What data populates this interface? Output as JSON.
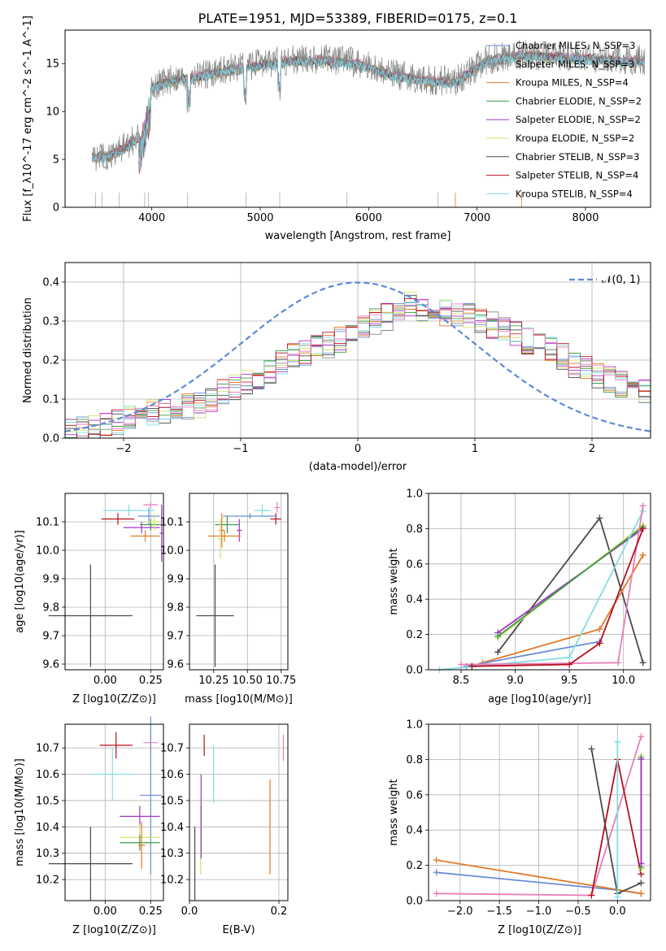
{
  "title": "PLATE=1951, MJD=53389, FIBERID=0175, z=0.1",
  "colors": {
    "chabrier_miles": "#6a8fd8",
    "salpeter_miles": "#888888",
    "kroupa_miles": "#e07a28",
    "chabrier_elodie": "#3f9a46",
    "salpeter_elodie": "#a335c7",
    "kroupa_elodie": "#d4e36a",
    "chabrier_stelib": "#4a4a4a",
    "salpeter_stelib": "#b80f1e",
    "kroupa_stelib": "#82dde3",
    "pink": "#e87eb9",
    "gauss": "#5f8ad8"
  },
  "chart_data": [
    {
      "id": "spectrum",
      "type": "line",
      "xlabel": "wavelength [Angstrom, rest frame]",
      "ylabel": "Flux [f_λ10^-17 erg cm^-2 s^-1 A^-1]",
      "xlim": [
        3200,
        8600
      ],
      "ylim": [
        0,
        18.5
      ],
      "xticks": [
        "4000",
        "5000",
        "6000",
        "7000",
        "8000"
      ],
      "yticks": [
        "0",
        "5",
        "10",
        "15"
      ],
      "grid": false,
      "legend_position": "top-right",
      "legend": [
        "Chabrier MILES, N_SSP=3",
        "Salpeter MILES, N_SSP=3",
        "Kroupa MILES, N_SSP=4",
        "Chabrier ELODIE, N_SSP=2",
        "Salpeter ELODIE, N_SSP=2",
        "Kroupa ELODIE, N_SSP=2",
        "Chabrier STELIB, N_SSP=3",
        "Salpeter STELIB, N_SSP=4",
        "Kroupa STELIB, N_SSP=4"
      ],
      "continuum": {
        "x": [
          3450,
          3600,
          3750,
          3900,
          4000,
          4200,
          4500,
          4800,
          5000,
          5300,
          5600,
          5900,
          6200,
          6500,
          6800,
          7100,
          7400,
          7700,
          8000,
          8300,
          8550
        ],
        "y": [
          5.2,
          5.3,
          6.2,
          7.5,
          12.5,
          13.2,
          13.8,
          14.5,
          14.8,
          15.3,
          15.3,
          15.0,
          13.8,
          13.2,
          13.0,
          15.3,
          15.8,
          15.7,
          15.5,
          15.3,
          15.2
        ]
      },
      "spikes": [
        3480,
        3540,
        3700,
        3935,
        3970,
        4330,
        4870,
        5180,
        5800,
        6640,
        6800,
        7410
      ]
    },
    {
      "id": "residuals",
      "type": "histogram",
      "xlabel": "(data-model)/error",
      "ylabel": "Normed distribution",
      "xlim": [
        -2.5,
        2.5
      ],
      "ylim": [
        0,
        0.45
      ],
      "xticks": [
        "−2",
        "−1",
        "0",
        "1",
        "2"
      ],
      "yticks": [
        "0.0",
        "0.1",
        "0.2",
        "0.3",
        "0.4"
      ],
      "grid": true,
      "legend_position": "top-right",
      "gauss_label": "𝒩(0, 1)",
      "bin_width": 0.1,
      "base_centers": [
        -2.45,
        -2.35,
        -2.25,
        -2.15,
        -2.05,
        -1.95,
        -1.85,
        -1.75,
        -1.65,
        -1.55,
        -1.45,
        -1.35,
        -1.25,
        -1.15,
        -1.05,
        -0.95,
        -0.85,
        -0.75,
        -0.65,
        -0.55,
        -0.45,
        -0.35,
        -0.25,
        -0.15,
        -0.05,
        0.05,
        0.15,
        0.25,
        0.35,
        0.45,
        0.55,
        0.65,
        0.75,
        0.85,
        0.95,
        1.05,
        1.15,
        1.25,
        1.35,
        1.45,
        1.55,
        1.65,
        1.75,
        1.85,
        1.95,
        2.05,
        2.15,
        2.25,
        2.35,
        2.45
      ],
      "base_values": [
        0.02,
        0.025,
        0.03,
        0.03,
        0.04,
        0.05,
        0.06,
        0.065,
        0.07,
        0.07,
        0.08,
        0.085,
        0.1,
        0.12,
        0.13,
        0.14,
        0.16,
        0.17,
        0.19,
        0.21,
        0.22,
        0.23,
        0.24,
        0.25,
        0.26,
        0.28,
        0.3,
        0.31,
        0.33,
        0.34,
        0.33,
        0.33,
        0.32,
        0.32,
        0.31,
        0.3,
        0.29,
        0.28,
        0.27,
        0.25,
        0.24,
        0.23,
        0.21,
        0.19,
        0.18,
        0.16,
        0.15,
        0.14,
        0.13,
        0.12
      ]
    },
    {
      "id": "age-vs-Z",
      "type": "errorbar",
      "xlabel": "Z [log10(Z/Z⊙)]",
      "ylabel": "age  [log10(age/yr)]",
      "xlim": [
        -0.22,
        0.32
      ],
      "ylim": [
        9.58,
        10.2
      ],
      "xticks": [
        "0.00",
        "0.25"
      ],
      "yticks": [
        "9.6",
        "9.7",
        "9.8",
        "9.9",
        "10.0",
        "10.1"
      ],
      "grid": true,
      "points": [
        {
          "x": -0.08,
          "y": 9.77,
          "ex": 0.23,
          "ey": 0.18,
          "c": "chabrier_stelib"
        },
        {
          "x": 0.07,
          "y": 10.11,
          "ex": 0.09,
          "ey": 0.02,
          "c": "salpeter_stelib"
        },
        {
          "x": 0.13,
          "y": 10.14,
          "ex": 0.14,
          "ey": 0.02,
          "c": "kroupa_stelib"
        },
        {
          "x": 0.25,
          "y": 10.16,
          "ex": 0.04,
          "ey": 0.01,
          "c": "pink"
        },
        {
          "x": 0.22,
          "y": 10.05,
          "ex": 0.08,
          "ey": 0.02,
          "c": "kroupa_miles"
        },
        {
          "x": 0.2,
          "y": 10.08,
          "ex": 0.1,
          "ey": 0.02,
          "c": "salpeter_elodie"
        },
        {
          "x": 0.24,
          "y": 10.12,
          "ex": 0.06,
          "ey": 0.03,
          "c": "chabrier_miles"
        },
        {
          "x": 0.25,
          "y": 10.09,
          "ex": 0.06,
          "ey": 0.02,
          "c": "chabrier_elodie"
        },
        {
          "x": 0.27,
          "y": 10.1,
          "ex": 0.04,
          "ey": 0.03,
          "c": "kroupa_elodie"
        },
        {
          "x": 0.31,
          "y": 10.06,
          "ex": 0.01,
          "ey": 0.1,
          "c": "salpeter_elodie"
        }
      ]
    },
    {
      "id": "age-vs-mass",
      "type": "errorbar",
      "xlabel": "mass [log10(M/M⊙)]",
      "ylabel": "",
      "xlim": [
        10.07,
        10.8
      ],
      "ylim": [
        9.58,
        10.2
      ],
      "xticks": [
        "10.25",
        "10.50",
        "10.75"
      ],
      "yticks": [
        "9.6",
        "9.7",
        "9.8",
        "9.9",
        "10.0",
        "10.1"
      ],
      "grid": true,
      "points": [
        {
          "x": 10.26,
          "y": 9.77,
          "ex": 0.14,
          "ey": 0.18,
          "c": "chabrier_stelib"
        },
        {
          "x": 10.71,
          "y": 10.11,
          "ex": 0.04,
          "ey": 0.02,
          "c": "salpeter_stelib"
        },
        {
          "x": 10.61,
          "y": 10.14,
          "ex": 0.06,
          "ey": 0.02,
          "c": "kroupa_stelib"
        },
        {
          "x": 10.72,
          "y": 10.15,
          "ex": 0.02,
          "ey": 0.02,
          "c": "pink"
        },
        {
          "x": 10.52,
          "y": 10.12,
          "ex": 0.2,
          "ey": 0.01,
          "c": "chabrier_miles"
        },
        {
          "x": 10.31,
          "y": 10.07,
          "ex": 0.02,
          "ey": 0.06,
          "c": "kroupa_miles"
        },
        {
          "x": 10.35,
          "y": 10.09,
          "ex": 0.09,
          "ey": 0.03,
          "c": "chabrier_elodie"
        },
        {
          "x": 10.44,
          "y": 10.07,
          "ex": 0.02,
          "ey": 0.04,
          "c": "salpeter_elodie"
        },
        {
          "x": 10.33,
          "y": 10.05,
          "ex": 0.12,
          "ey": 0.02,
          "c": "kroupa_miles"
        },
        {
          "x": 10.3,
          "y": 10.04,
          "ex": 0.02,
          "ey": 0.07,
          "c": "kroupa_elodie"
        }
      ]
    },
    {
      "id": "massweight-vs-age",
      "type": "line",
      "xlabel": "age  [log10(age/yr)]",
      "ylabel": "mass weight",
      "xlim": [
        8.2,
        10.25
      ],
      "ylim": [
        0,
        1.0
      ],
      "xticks": [
        "8.5",
        "9.0",
        "9.5",
        "10.0"
      ],
      "yticks": [
        "0.0",
        "0.2",
        "0.4",
        "0.6",
        "0.8",
        "1.0"
      ],
      "grid": true,
      "series": [
        {
          "c": "chabrier_stelib",
          "x": [
            8.84,
            9.78,
            10.18
          ],
          "y": [
            0.1,
            0.86,
            0.04
          ]
        },
        {
          "c": "salpeter_elodie",
          "x": [
            8.84,
            10.18
          ],
          "y": [
            0.21,
            0.8
          ]
        },
        {
          "c": "kroupa_elodie",
          "x": [
            8.84,
            10.18
          ],
          "y": [
            0.18,
            0.82
          ]
        },
        {
          "c": "chabrier_elodie",
          "x": [
            8.84,
            10.18
          ],
          "y": [
            0.19,
            0.81
          ]
        },
        {
          "c": "kroupa_miles",
          "x": [
            8.7,
            9.78,
            10.18
          ],
          "y": [
            0.04,
            0.23,
            0.65
          ]
        },
        {
          "c": "chabrier_miles",
          "x": [
            8.55,
            9.78
          ],
          "y": [
            0.02,
            0.16
          ]
        },
        {
          "c": "kroupa_stelib",
          "x": [
            8.3,
            9.5,
            10.18
          ],
          "y": [
            0.0,
            0.07,
            0.9
          ]
        },
        {
          "c": "pink",
          "x": [
            8.5,
            9.95,
            10.18
          ],
          "y": [
            0.03,
            0.04,
            0.93
          ]
        },
        {
          "c": "salpeter_stelib",
          "x": [
            8.6,
            9.5,
            9.78,
            10.18
          ],
          "y": [
            0.02,
            0.03,
            0.15,
            0.8
          ]
        }
      ]
    },
    {
      "id": "mass-vs-Z",
      "type": "errorbar",
      "xlabel": "Z [log10(Z/Z⊙)]",
      "ylabel": "mass [log10(M/M⊙)]",
      "xlim": [
        -0.22,
        0.32
      ],
      "ylim": [
        10.12,
        10.79
      ],
      "xticks": [
        "0.00",
        "0.25"
      ],
      "yticks": [
        "10.2",
        "10.3",
        "10.4",
        "10.5",
        "10.6",
        "10.7"
      ],
      "grid": true,
      "points": [
        {
          "x": -0.08,
          "y": 10.26,
          "ex": 0.23,
          "ey": 0.14,
          "c": "chabrier_stelib"
        },
        {
          "x": 0.06,
          "y": 10.71,
          "ex": 0.09,
          "ey": 0.05,
          "c": "salpeter_stelib"
        },
        {
          "x": 0.04,
          "y": 10.6,
          "ex": 0.13,
          "ey": 0.1,
          "c": "kroupa_stelib"
        },
        {
          "x": 0.25,
          "y": 10.72,
          "ex": 0.04,
          "ey": 0.04,
          "c": "pink"
        },
        {
          "x": 0.25,
          "y": 10.52,
          "ex": 0.06,
          "ey": 0.3,
          "c": "chabrier_miles"
        },
        {
          "x": 0.19,
          "y": 10.44,
          "ex": 0.11,
          "ey": 0.04,
          "c": "salpeter_elodie"
        },
        {
          "x": 0.19,
          "y": 10.36,
          "ex": 0.11,
          "ey": 0.05,
          "c": "kroupa_elodie"
        },
        {
          "x": 0.19,
          "y": 10.34,
          "ex": 0.11,
          "ey": 0.03,
          "c": "chabrier_elodie"
        },
        {
          "x": 0.2,
          "y": 10.33,
          "ex": 0.02,
          "ey": 0.09,
          "c": "kroupa_miles"
        }
      ]
    },
    {
      "id": "mass-vs-ebv",
      "type": "errorbar",
      "xlabel": "E(B-V)",
      "ylabel": "",
      "xlim": [
        0.0,
        0.22
      ],
      "ylim": [
        10.12,
        10.79
      ],
      "xticks": [
        "0.0",
        "0.2"
      ],
      "yticks": [
        "10.2",
        "10.3",
        "10.4",
        "10.5",
        "10.6",
        "10.7"
      ],
      "grid": true,
      "points": [
        {
          "x": 0.012,
          "y": 10.26,
          "ex": 0.0,
          "ey": 0.14,
          "c": "chabrier_stelib"
        },
        {
          "x": 0.025,
          "y": 10.35,
          "ex": 0.0,
          "ey": 0.13,
          "c": "kroupa_elodie"
        },
        {
          "x": 0.026,
          "y": 10.44,
          "ex": 0.0,
          "ey": 0.16,
          "c": "salpeter_elodie"
        },
        {
          "x": 0.033,
          "y": 10.71,
          "ex": 0.0,
          "ey": 0.04,
          "c": "salpeter_stelib"
        },
        {
          "x": 0.054,
          "y": 10.6,
          "ex": 0.0,
          "ey": 0.11,
          "c": "kroupa_stelib"
        },
        {
          "x": 0.18,
          "y": 10.4,
          "ex": 0.0,
          "ey": 0.18,
          "c": "kroupa_miles"
        },
        {
          "x": 0.21,
          "y": 10.7,
          "ex": 0.0,
          "ey": 0.05,
          "c": "pink"
        }
      ]
    },
    {
      "id": "massweight-vs-Z",
      "type": "line",
      "xlabel": "Z [log10(Z/Z⊙)]",
      "ylabel": "mass weight",
      "xlim": [
        -2.4,
        0.42
      ],
      "ylim": [
        0,
        1.0
      ],
      "xticks": [
        "−2.0",
        "−1.5",
        "−1.0",
        "−0.5",
        "0.0"
      ],
      "yticks": [
        "0.0",
        "0.2",
        "0.4",
        "0.6",
        "0.8",
        "1.0"
      ],
      "grid": true,
      "series": [
        {
          "c": "chabrier_miles",
          "x": [
            -2.3,
            -0.0,
            0.3
          ],
          "y": [
            0.16,
            0.06,
            0.04
          ]
        },
        {
          "c": "kroupa_miles",
          "x": [
            -2.3,
            0.3
          ],
          "y": [
            0.23,
            0.04
          ]
        },
        {
          "c": "pink",
          "x": [
            -2.3,
            -0.33,
            0.3
          ],
          "y": [
            0.04,
            0.03,
            0.93
          ]
        },
        {
          "c": "chabrier_stelib",
          "x": [
            -0.33,
            0.0,
            0.3
          ],
          "y": [
            0.86,
            0.04,
            0.1
          ]
        },
        {
          "c": "salpeter_stelib",
          "x": [
            -0.33,
            0.0,
            0.3
          ],
          "y": [
            0.03,
            0.8,
            0.15
          ]
        },
        {
          "c": "kroupa_stelib",
          "x": [
            0.0,
            0.0
          ],
          "y": [
            0.9,
            0.02
          ]
        },
        {
          "c": "kroupa_elodie",
          "x": [
            0.3,
            0.3
          ],
          "y": [
            0.82,
            0.18
          ]
        },
        {
          "c": "chabrier_elodie",
          "x": [
            0.3,
            0.3
          ],
          "y": [
            0.81,
            0.19
          ]
        },
        {
          "c": "salpeter_elodie",
          "x": [
            0.3,
            0.3
          ],
          "y": [
            0.8,
            0.21
          ]
        }
      ]
    }
  ]
}
